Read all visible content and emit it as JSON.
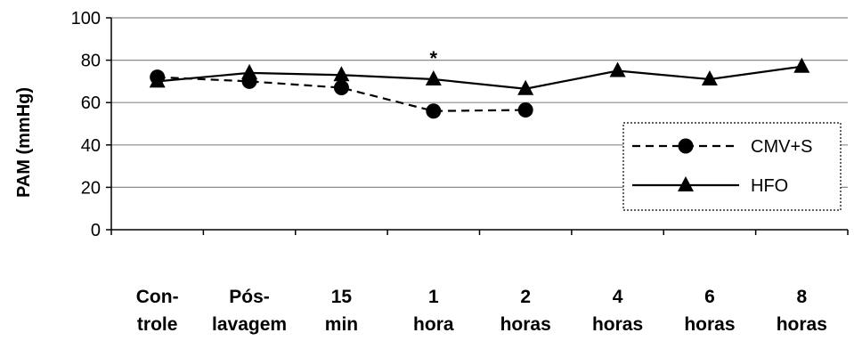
{
  "chart_data": {
    "type": "line",
    "ylabel": "PAM (mmHg)",
    "ylim": [
      0,
      100
    ],
    "yticks": [
      0,
      20,
      40,
      60,
      80,
      100
    ],
    "categories": [
      [
        "Con-",
        "trole"
      ],
      [
        "Pós-",
        "lavagem"
      ],
      [
        "15",
        "min"
      ],
      [
        "1",
        "hora"
      ],
      [
        "2",
        "horas"
      ],
      [
        "4",
        "horas"
      ],
      [
        "6",
        "horas"
      ],
      [
        "8",
        "horas"
      ]
    ],
    "series": [
      {
        "name": "CMV+S",
        "marker": "circle",
        "line": "dashed",
        "values": [
          72,
          70,
          67,
          56,
          56.5,
          null,
          null,
          null
        ]
      },
      {
        "name": "HFO",
        "marker": "triangle",
        "line": "solid",
        "values": [
          70,
          74,
          73,
          71,
          66.5,
          75,
          71,
          77
        ]
      }
    ],
    "annotations": [
      {
        "text": "*",
        "category_index": 3
      }
    ],
    "grid": true,
    "legend_position": "right"
  }
}
